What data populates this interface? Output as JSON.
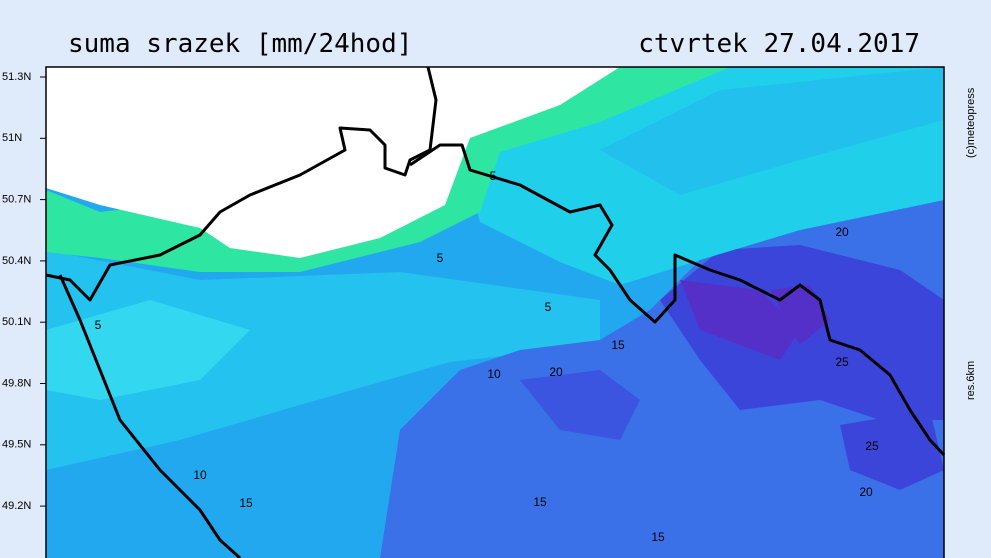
{
  "header": {
    "title": "suma srazek [mm/24hod]",
    "date": "ctvrtek 27.04.2017"
  },
  "axis": {
    "latitudes": [
      "51.3N",
      "51N",
      "50.7N",
      "50.4N",
      "50.1N",
      "49.8N",
      "49.5N",
      "49.2N"
    ]
  },
  "side": {
    "copyright": "(c)meteopress",
    "resolution": "res.6km"
  },
  "contour_labels": [
    "5",
    "5",
    "5",
    "5",
    "15",
    "10",
    "20",
    "20",
    "25",
    "25",
    "20",
    "10",
    "15",
    "15",
    "15"
  ]
}
